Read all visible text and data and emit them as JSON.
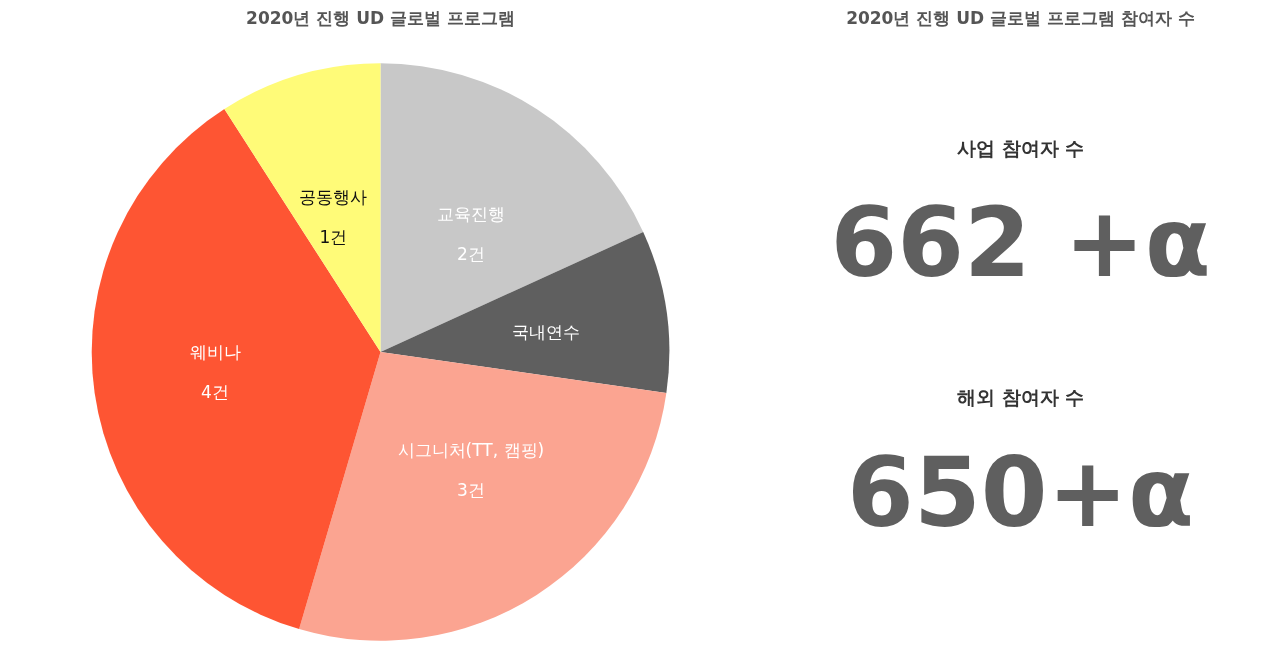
{
  "chart_data": [
    {
      "type": "pie",
      "title": "2020년 진행 UD 글로벌 프로그램",
      "categories": [
        "교육진행",
        "국내연수",
        "시그니처(TT, 캠핑)",
        "웨비나",
        "공동행사"
      ],
      "values": [
        2,
        1,
        3,
        4,
        1
      ],
      "value_labels": [
        "2건",
        null,
        "3건",
        "4건",
        "1건"
      ],
      "colors": [
        "#c8c8c8",
        "#5f5f5f",
        "#fba491",
        "#fe5533",
        "#fffb78"
      ]
    },
    {
      "type": "other",
      "title": "2020년 진행 UD 글로벌 프로그램 참여자 수",
      "annotations": [
        "사업 참여자 수",
        "662 +α",
        "해외 참여자 수",
        "650+α"
      ]
    }
  ]
}
